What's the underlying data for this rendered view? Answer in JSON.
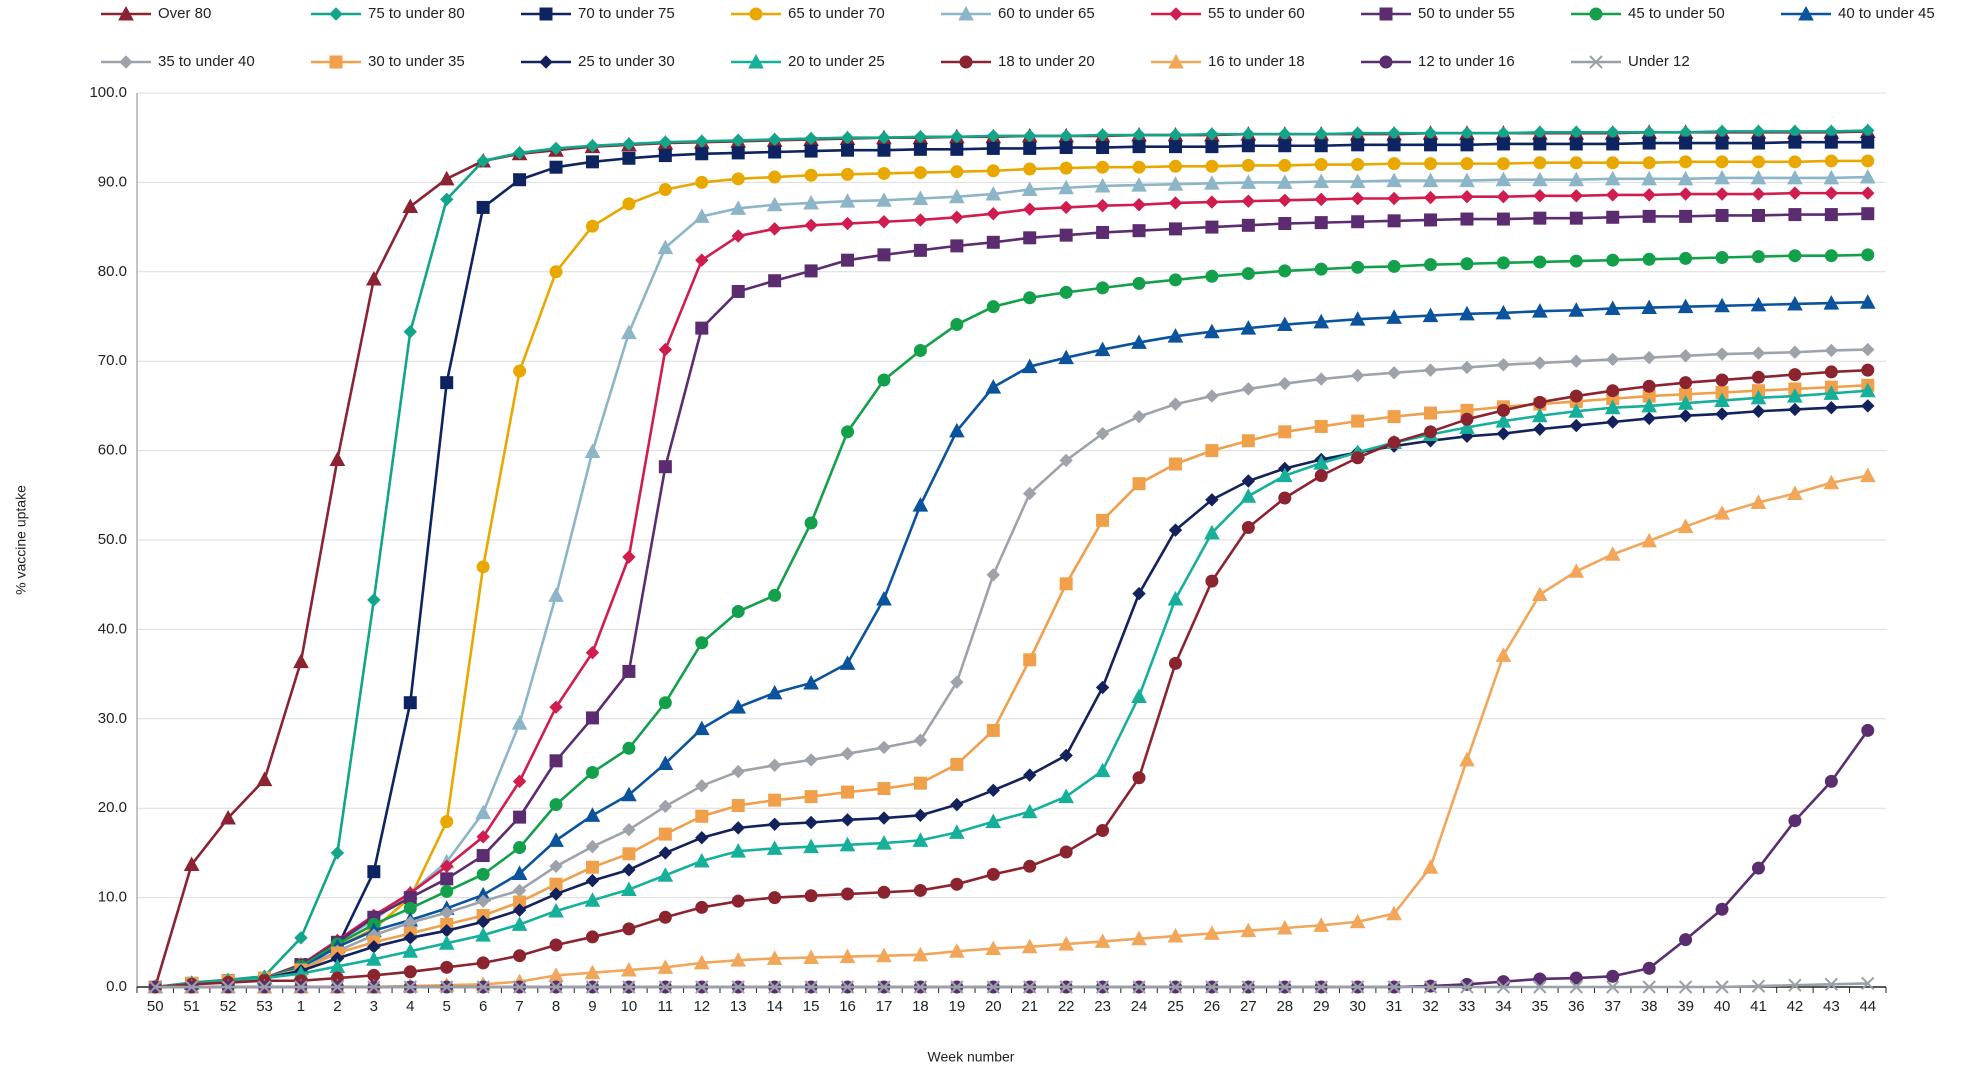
{
  "chart_data": {
    "type": "line",
    "xlabel": "Week number",
    "ylabel": "% vaccine uptake",
    "categories": [
      "50",
      "51",
      "52",
      "53",
      "1",
      "2",
      "3",
      "4",
      "5",
      "6",
      "7",
      "8",
      "9",
      "10",
      "11",
      "12",
      "13",
      "14",
      "15",
      "16",
      "17",
      "18",
      "19",
      "20",
      "21",
      "22",
      "23",
      "24",
      "25",
      "26",
      "27",
      "28",
      "29",
      "30",
      "31",
      "32",
      "33",
      "34",
      "35",
      "36",
      "37",
      "38",
      "39",
      "40",
      "41",
      "42",
      "43",
      "44"
    ],
    "ylim": [
      0,
      100
    ],
    "yticks": [
      {
        "value": 0,
        "label": "0.0"
      },
      {
        "value": 10,
        "label": "10.0"
      },
      {
        "value": 20,
        "label": "20.0"
      },
      {
        "value": 30,
        "label": "30.0"
      },
      {
        "value": 40,
        "label": "40.0"
      },
      {
        "value": 50,
        "label": "50.0"
      },
      {
        "value": 60,
        "label": "60.0"
      },
      {
        "value": 70,
        "label": "70.0"
      },
      {
        "value": 80,
        "label": "80.0"
      },
      {
        "value": 90,
        "label": "90.0"
      },
      {
        "value": 100,
        "label": "100.0"
      }
    ],
    "grid": true,
    "legend": "top",
    "series": [
      {
        "name": "Over 80",
        "color": "#8b2332",
        "marker": "triangle",
        "values": [
          0,
          13.7,
          18.9,
          23.2,
          36.4,
          59,
          79.2,
          87.3,
          90.4,
          92.4,
          93.2,
          93.6,
          94.0,
          94.2,
          94.4,
          94.5,
          94.6,
          94.7,
          94.8,
          94.9,
          95.0,
          95.0,
          95.1,
          95.1,
          95.2,
          95.2,
          95.2,
          95.3,
          95.3,
          95.3,
          95.4,
          95.4,
          95.4,
          95.4,
          95.4,
          95.5,
          95.5,
          95.5,
          95.5,
          95.5,
          95.5,
          95.6,
          95.6,
          95.6,
          95.6,
          95.6,
          95.6,
          95.7
        ]
      },
      {
        "name": "75 to under 80",
        "color": "#12a58a",
        "marker": "diamond",
        "values": [
          0,
          0.5,
          0.8,
          1.2,
          5.5,
          15,
          43.3,
          73.3,
          88.1,
          92.4,
          93.3,
          93.8,
          94.1,
          94.3,
          94.5,
          94.6,
          94.7,
          94.8,
          94.9,
          95.0,
          95.0,
          95.1,
          95.1,
          95.2,
          95.2,
          95.2,
          95.3,
          95.3,
          95.3,
          95.4,
          95.4,
          95.4,
          95.4,
          95.5,
          95.5,
          95.5,
          95.5,
          95.5,
          95.6,
          95.6,
          95.6,
          95.6,
          95.6,
          95.7,
          95.7,
          95.7,
          95.7,
          95.8
        ]
      },
      {
        "name": "70 to under 75",
        "color": "#0d2461",
        "marker": "square",
        "values": [
          0,
          0.4,
          0.7,
          1.0,
          2.5,
          4.5,
          12.9,
          31.8,
          67.6,
          87.2,
          90.3,
          91.7,
          92.3,
          92.7,
          93.0,
          93.2,
          93.3,
          93.4,
          93.5,
          93.6,
          93.6,
          93.7,
          93.7,
          93.8,
          93.8,
          93.9,
          93.9,
          94.0,
          94.0,
          94.0,
          94.1,
          94.1,
          94.1,
          94.2,
          94.2,
          94.2,
          94.2,
          94.3,
          94.3,
          94.3,
          94.3,
          94.4,
          94.4,
          94.4,
          94.4,
          94.5,
          94.5,
          94.5
        ]
      },
      {
        "name": "65 to under 70",
        "color": "#e8a800",
        "marker": "circle",
        "values": [
          0,
          0.4,
          0.7,
          1.0,
          2.5,
          4.5,
          6.5,
          10,
          18.5,
          47,
          68.9,
          80,
          85.1,
          87.6,
          89.2,
          90.0,
          90.4,
          90.6,
          90.8,
          90.9,
          91.0,
          91.1,
          91.2,
          91.3,
          91.5,
          91.6,
          91.7,
          91.7,
          91.8,
          91.8,
          91.9,
          91.9,
          92.0,
          92.0,
          92.1,
          92.1,
          92.1,
          92.1,
          92.2,
          92.2,
          92.2,
          92.2,
          92.3,
          92.3,
          92.3,
          92.3,
          92.4,
          92.4
        ]
      },
      {
        "name": "60 to under 65",
        "color": "#8db5c8",
        "marker": "triangle",
        "values": [
          0,
          0.4,
          0.7,
          1.0,
          2.5,
          5,
          7.5,
          10.5,
          14,
          19.5,
          29.5,
          43.8,
          59.9,
          73.2,
          82.7,
          86.2,
          87.1,
          87.5,
          87.7,
          87.9,
          88.0,
          88.2,
          88.4,
          88.7,
          89.2,
          89.4,
          89.6,
          89.7,
          89.8,
          89.9,
          90.0,
          90.0,
          90.1,
          90.1,
          90.2,
          90.2,
          90.2,
          90.3,
          90.3,
          90.3,
          90.4,
          90.4,
          90.4,
          90.5,
          90.5,
          90.5,
          90.5,
          90.6
        ]
      },
      {
        "name": "55 to under 60",
        "color": "#d01c4e",
        "marker": "diamond",
        "values": [
          0,
          0.4,
          0.7,
          1.0,
          2.5,
          5.2,
          8,
          10.5,
          13.5,
          16.8,
          23,
          31.3,
          37.4,
          48.1,
          71.3,
          81.3,
          84.0,
          84.8,
          85.2,
          85.4,
          85.6,
          85.8,
          86.1,
          86.5,
          87.0,
          87.2,
          87.4,
          87.5,
          87.7,
          87.8,
          87.9,
          88.0,
          88.1,
          88.2,
          88.2,
          88.3,
          88.4,
          88.4,
          88.5,
          88.5,
          88.6,
          88.6,
          88.7,
          88.7,
          88.7,
          88.8,
          88.8,
          88.8
        ]
      },
      {
        "name": "50 to under 55",
        "color": "#5b2c6f",
        "marker": "square",
        "values": [
          0,
          0.4,
          0.7,
          1.0,
          2.4,
          5,
          7.8,
          10,
          12.1,
          14.7,
          19,
          25.3,
          30.1,
          35.3,
          58.2,
          73.7,
          77.8,
          79.0,
          80.1,
          81.3,
          81.9,
          82.4,
          82.9,
          83.3,
          83.8,
          84.1,
          84.4,
          84.6,
          84.8,
          85.0,
          85.2,
          85.4,
          85.5,
          85.6,
          85.7,
          85.8,
          85.9,
          85.9,
          86.0,
          86.0,
          86.1,
          86.2,
          86.2,
          86.3,
          86.3,
          86.4,
          86.4,
          86.5
        ]
      },
      {
        "name": "45 to under 50",
        "color": "#13a04b",
        "marker": "circle",
        "values": [
          0,
          0.4,
          0.7,
          1.0,
          2.3,
          4.8,
          7,
          8.8,
          10.7,
          12.6,
          15.6,
          20.4,
          24,
          26.7,
          31.8,
          38.5,
          42,
          43.8,
          51.9,
          62.1,
          67.9,
          71.2,
          74.1,
          76.1,
          77.1,
          77.7,
          78.2,
          78.7,
          79.1,
          79.5,
          79.8,
          80.1,
          80.3,
          80.5,
          80.6,
          80.8,
          80.9,
          81.0,
          81.1,
          81.2,
          81.3,
          81.4,
          81.5,
          81.6,
          81.7,
          81.8,
          81.8,
          81.9
        ]
      },
      {
        "name": "40 to under 45",
        "color": "#0b539d",
        "marker": "triangle",
        "values": [
          0,
          0.4,
          0.7,
          1.0,
          2.1,
          4.5,
          6.3,
          7.5,
          8.8,
          10.3,
          12.7,
          16.4,
          19.2,
          21.5,
          25.0,
          28.9,
          31.3,
          32.9,
          34.0,
          36.2,
          43.4,
          53.9,
          62.2,
          67.1,
          69.4,
          70.4,
          71.3,
          72.1,
          72.8,
          73.3,
          73.7,
          74.1,
          74.4,
          74.7,
          74.9,
          75.1,
          75.3,
          75.4,
          75.6,
          75.7,
          75.9,
          76.0,
          76.1,
          76.2,
          76.3,
          76.4,
          76.5,
          76.6
        ]
      },
      {
        "name": "35 to under 40",
        "color": "#9ea3ab",
        "marker": "diamond",
        "values": [
          0,
          0.4,
          0.7,
          1.0,
          2.0,
          4,
          5.8,
          7.2,
          8.3,
          9.6,
          10.8,
          13.5,
          15.7,
          17.6,
          20.2,
          22.5,
          24.1,
          24.8,
          25.4,
          26.1,
          26.8,
          27.6,
          34.1,
          46.1,
          55.2,
          58.9,
          61.9,
          63.8,
          65.2,
          66.1,
          66.9,
          67.5,
          68.0,
          68.4,
          68.7,
          69.0,
          69.3,
          69.6,
          69.8,
          70.0,
          70.2,
          70.4,
          70.6,
          70.8,
          70.9,
          71.0,
          71.2,
          71.3
        ]
      },
      {
        "name": "30 to under 35",
        "color": "#f0a04b",
        "marker": "square",
        "values": [
          0,
          0.4,
          0.7,
          1.0,
          1.9,
          3.8,
          5,
          6,
          7,
          8,
          9.5,
          11.5,
          13.4,
          14.9,
          17.1,
          19.1,
          20.3,
          20.9,
          21.3,
          21.8,
          22.2,
          22.8,
          24.9,
          28.7,
          36.6,
          45.1,
          52.2,
          56.3,
          58.5,
          60.0,
          61.1,
          62.1,
          62.7,
          63.3,
          63.8,
          64.2,
          64.5,
          64.9,
          65.2,
          65.5,
          65.8,
          66.1,
          66.3,
          66.5,
          66.7,
          66.9,
          67.1,
          67.3
        ]
      },
      {
        "name": "25 to under 30",
        "color": "#13225c",
        "marker": "diamond",
        "values": [
          0,
          0.4,
          0.7,
          1.0,
          1.8,
          3.2,
          4.5,
          5.5,
          6.3,
          7.3,
          8.6,
          10.4,
          11.9,
          13.1,
          15.0,
          16.7,
          17.8,
          18.2,
          18.4,
          18.7,
          18.9,
          19.2,
          20.4,
          22.0,
          23.7,
          25.9,
          33.5,
          44.0,
          51.1,
          54.5,
          56.6,
          58.0,
          59.0,
          59.8,
          60.5,
          61.1,
          61.6,
          61.9,
          62.4,
          62.8,
          63.2,
          63.6,
          63.9,
          64.1,
          64.4,
          64.6,
          64.8,
          65.0
        ]
      },
      {
        "name": "20 to under 25",
        "color": "#16b09a",
        "marker": "triangle",
        "values": [
          0,
          0.4,
          0.7,
          1.0,
          1.5,
          2.3,
          3.1,
          4.0,
          4.9,
          5.8,
          7.0,
          8.5,
          9.7,
          10.9,
          12.5,
          14.1,
          15.2,
          15.5,
          15.7,
          15.9,
          16.1,
          16.4,
          17.3,
          18.5,
          19.6,
          21.3,
          24.2,
          32.5,
          43.4,
          50.8,
          54.9,
          57.2,
          58.6,
          59.8,
          60.9,
          61.8,
          62.6,
          63.3,
          63.9,
          64.4,
          64.8,
          65.0,
          65.3,
          65.6,
          65.9,
          66.1,
          66.4,
          66.7
        ]
      },
      {
        "name": "18 to under 20",
        "color": "#8c2430",
        "marker": "circle",
        "values": [
          0,
          0.3,
          0.5,
          0.7,
          0.7,
          1.0,
          1.3,
          1.7,
          2.2,
          2.7,
          3.5,
          4.7,
          5.6,
          6.5,
          7.8,
          8.9,
          9.6,
          10.0,
          10.2,
          10.4,
          10.6,
          10.8,
          11.5,
          12.6,
          13.5,
          15.1,
          17.5,
          23.4,
          36.2,
          45.4,
          51.4,
          54.7,
          57.2,
          59.2,
          60.9,
          62.1,
          63.5,
          64.5,
          65.4,
          66.1,
          66.7,
          67.2,
          67.6,
          67.9,
          68.2,
          68.5,
          68.8,
          69.0
        ]
      },
      {
        "name": "16 to under 18",
        "color": "#f2a65a",
        "marker": "triangle",
        "values": [
          0,
          0,
          0,
          0,
          0,
          0,
          0,
          0.1,
          0.2,
          0.3,
          0.6,
          1.3,
          1.6,
          1.9,
          2.2,
          2.7,
          3.0,
          3.2,
          3.3,
          3.4,
          3.5,
          3.6,
          4.0,
          4.3,
          4.5,
          4.8,
          5.1,
          5.4,
          5.7,
          6.0,
          6.3,
          6.6,
          6.9,
          7.3,
          8.2,
          13.4,
          25.4,
          37.1,
          43.9,
          46.5,
          48.4,
          49.9,
          51.5,
          53.0,
          54.2,
          55.2,
          56.4,
          57.2
        ]
      },
      {
        "name": "12 to under 16",
        "color": "#5a2d6e",
        "marker": "circle",
        "values": [
          0,
          0,
          0,
          0,
          0,
          0,
          0,
          0,
          0,
          0,
          0,
          0,
          0,
          0,
          0,
          0,
          0,
          0,
          0,
          0,
          0,
          0,
          0,
          0,
          0,
          0,
          0,
          0,
          0,
          0,
          0,
          0,
          0,
          0,
          0,
          0.1,
          0.3,
          0.6,
          0.9,
          1.0,
          1.2,
          2.1,
          5.3,
          8.7,
          13.3,
          18.6,
          23.0,
          28.7
        ]
      },
      {
        "name": "Under 12",
        "color": "#9aa0a8",
        "marker": "x",
        "values": [
          0,
          0,
          0,
          0,
          0,
          0,
          0,
          0,
          0,
          0,
          0,
          0,
          0,
          0,
          0,
          0,
          0,
          0,
          0,
          0,
          0,
          0,
          0,
          0,
          0,
          0,
          0,
          0,
          0,
          0,
          0,
          0,
          0,
          0,
          0,
          0,
          0,
          0,
          0,
          0,
          0,
          0,
          0,
          0,
          0.1,
          0.2,
          0.3,
          0.4
        ]
      }
    ]
  }
}
